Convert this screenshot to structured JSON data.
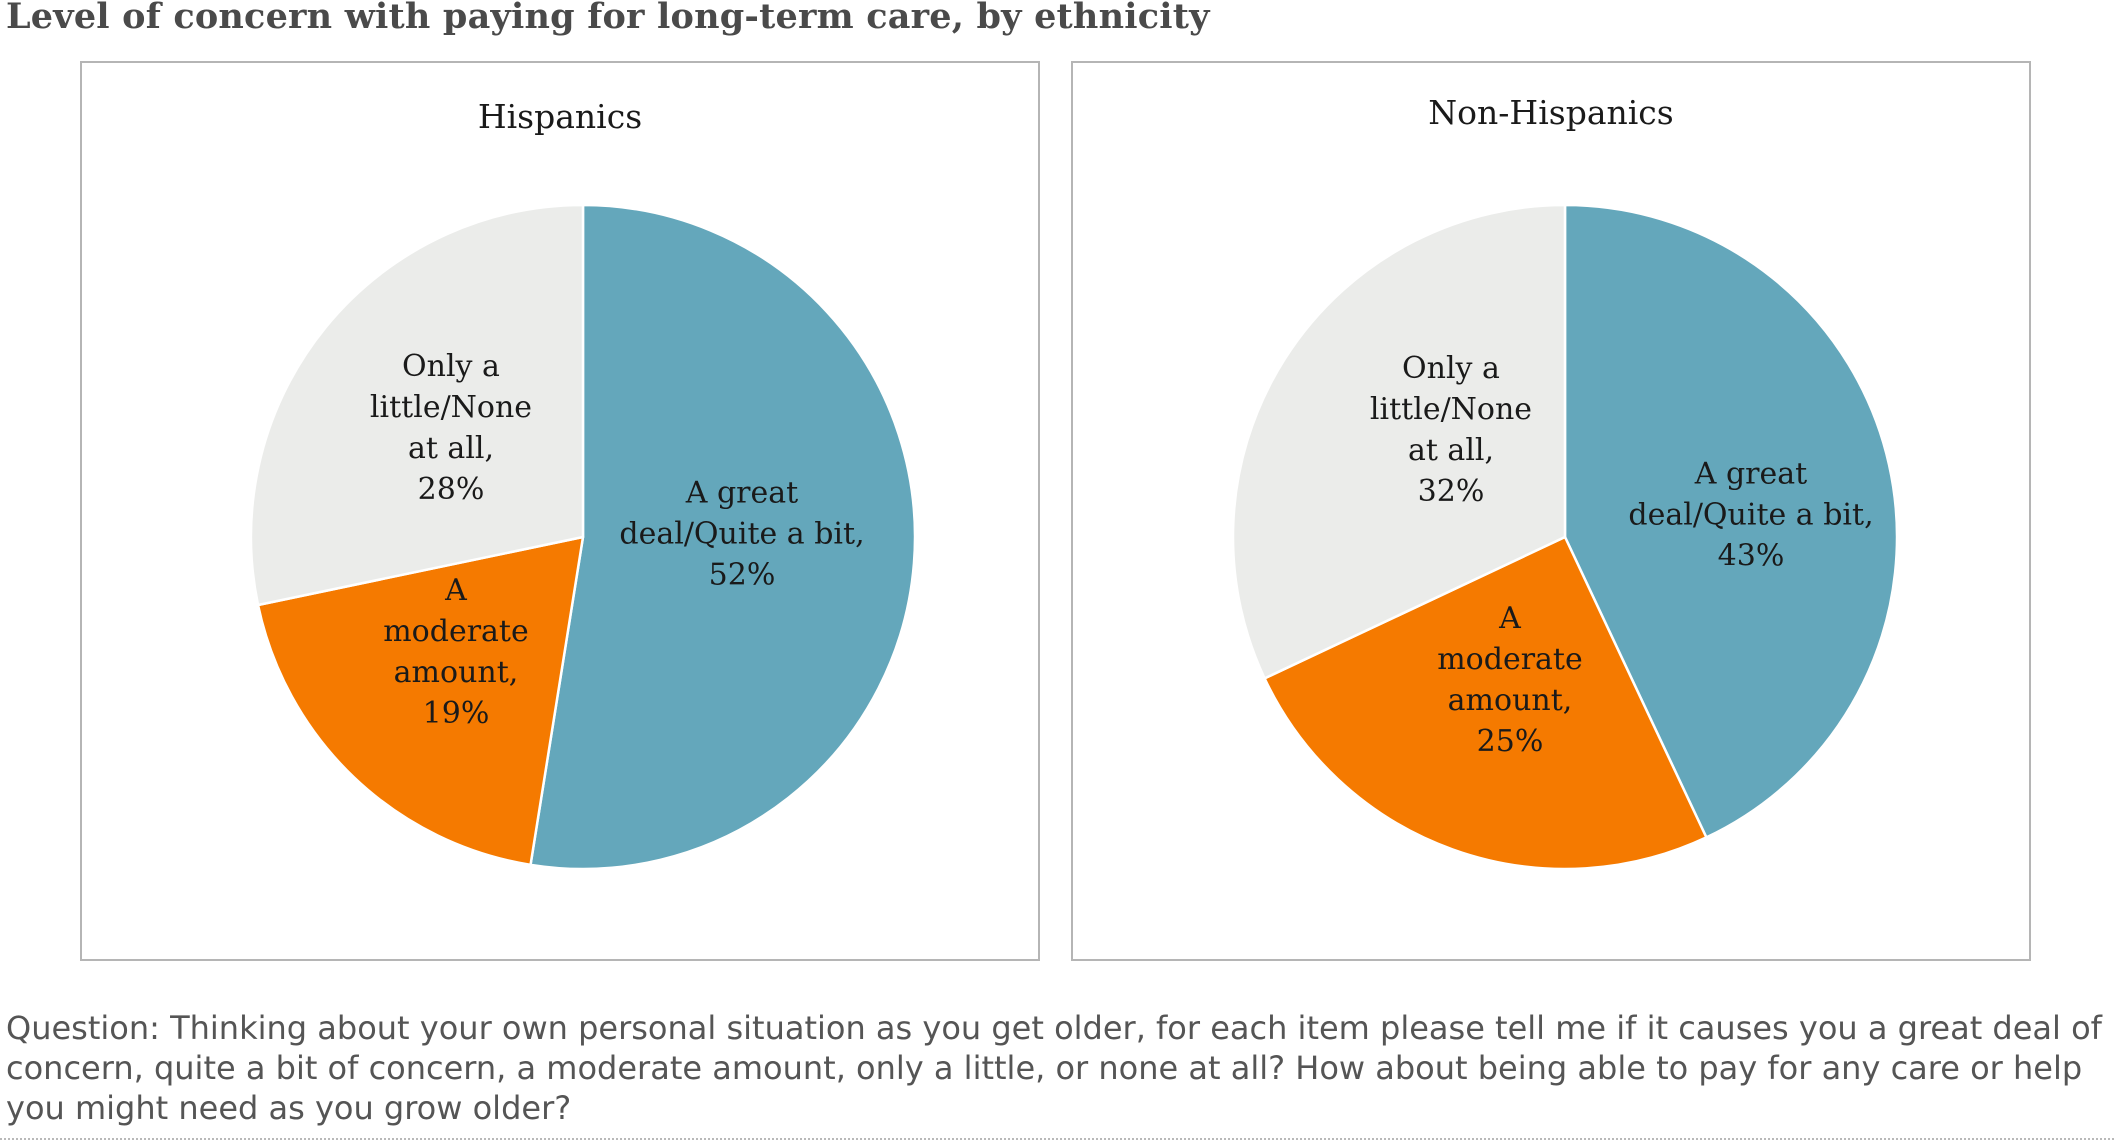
{
  "title": "Level of concern with paying for long-term care, by ethnicity",
  "question": "Question: Thinking about your own personal situation as you get older, for each item please tell me if it causes you a great deal of concern, quite a bit of concern, a moderate amount, only a little, or none at all? How about being able to pay for any care or help you might need as you grow older?",
  "colors": {
    "great_deal": "#64a7bb",
    "moderate": "#f57a00",
    "little_none": "#ebecea",
    "border": "#b5b5b5",
    "slice_edge": "#ffffff"
  },
  "chart_data": [
    {
      "type": "pie",
      "title": "Hispanics",
      "categories": [
        "A great deal/Quite a bit",
        "A moderate amount",
        "Only a little/None at all"
      ],
      "values": [
        52,
        19,
        28
      ],
      "labels": [
        [
          "A great",
          "deal/Quite a bit,",
          "52%"
        ],
        [
          "A",
          "moderate",
          "amount,",
          "19%"
        ],
        [
          "Only a",
          "little/None",
          "at all,",
          "28%"
        ]
      ]
    },
    {
      "type": "pie",
      "title": "Non-Hispanics",
      "categories": [
        "A great deal/Quite a bit",
        "A moderate amount",
        "Only a little/None at all"
      ],
      "values": [
        43,
        25,
        32
      ],
      "labels": [
        [
          "A great",
          "deal/Quite a bit,",
          "43%"
        ],
        [
          "A",
          "moderate",
          "amount,",
          "25%"
        ],
        [
          "Only a",
          "little/None",
          "at all,",
          "32%"
        ]
      ]
    }
  ]
}
